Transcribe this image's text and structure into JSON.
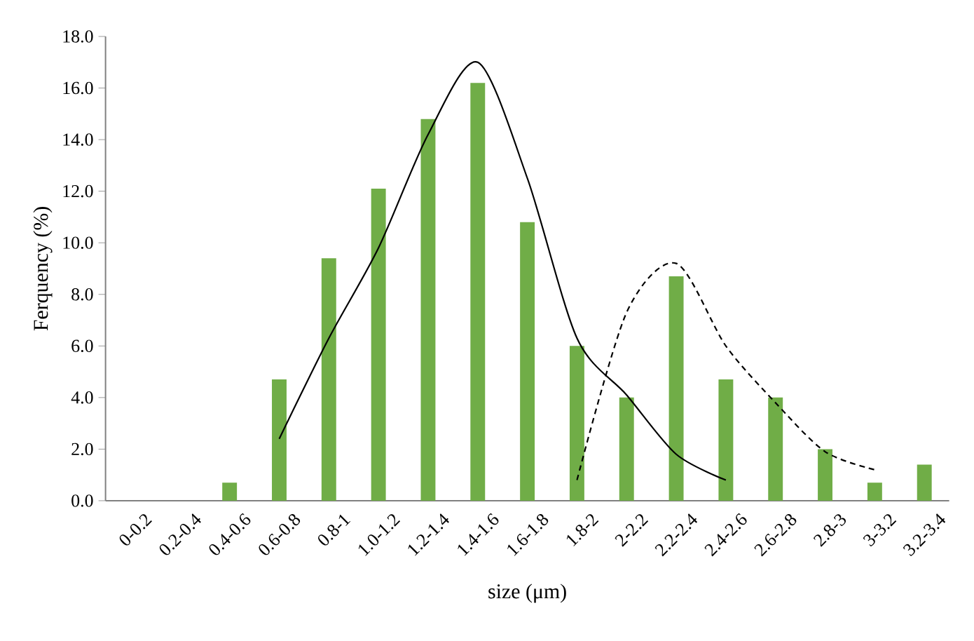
{
  "chart_data": {
    "type": "bar",
    "xlabel": "size (μm)",
    "ylabel": "Ferquency (%)",
    "categories": [
      "0-0.2",
      "0.2-0.4",
      "0.4-0.6",
      "0.6-0.8",
      "0.8-1",
      "1.0-1.2",
      "1.2-1.4",
      "1.4-1.6",
      "1.6-1.8",
      "1.8-2",
      "2-2.2",
      "2.2-2.4",
      "2.4-2.6",
      "2.6-2.8",
      "2.8-3",
      "3-3.2",
      "3.2-3.4"
    ],
    "series": [
      {
        "color": "#70ad47",
        "values": [
          0,
          0,
          0.7,
          4.7,
          9.4,
          12.1,
          14.8,
          16.2,
          10.8,
          6.0,
          4.0,
          8.7,
          4.7,
          4.0,
          2.0,
          0.7,
          1.4
        ]
      },
      {
        "type": "line",
        "color": "#000000",
        "line_style": "solid",
        "values": [
          null,
          null,
          null,
          2.4,
          6.3,
          9.8,
          14.2,
          17.0,
          12.5,
          6.3,
          4.1,
          1.8,
          0.8,
          null,
          null,
          null,
          null
        ]
      },
      {
        "type": "line",
        "color": "#000000",
        "line_style": "dashed",
        "values": [
          null,
          null,
          null,
          null,
          null,
          null,
          null,
          null,
          null,
          0.8,
          7.3,
          9.2,
          6.0,
          3.8,
          1.9,
          1.2,
          null
        ]
      }
    ],
    "ylim": [
      0,
      18
    ],
    "yticks": [
      {
        "value": 0,
        "label": "0.0"
      },
      {
        "value": 2,
        "label": "2.0"
      },
      {
        "value": 4,
        "label": "4.0"
      },
      {
        "value": 6,
        "label": "6.0"
      },
      {
        "value": 8,
        "label": "8.0"
      },
      {
        "value": 10,
        "label": "10.0"
      },
      {
        "value": 12,
        "label": "12.0"
      },
      {
        "value": 14,
        "label": "14.0"
      },
      {
        "value": 16,
        "label": "16.0"
      },
      {
        "value": 18,
        "label": "18.0"
      }
    ],
    "grid": false,
    "marker": "none"
  }
}
